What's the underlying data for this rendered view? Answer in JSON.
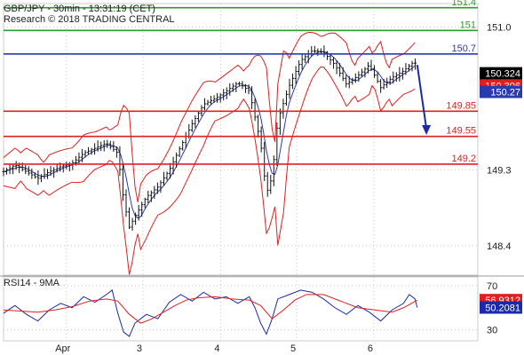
{
  "header": {
    "line1": "GBP/JPY - 30min - 13:31:19 (CET)",
    "line2": "Research © 2018 TRADING CENTRAL"
  },
  "chart_data": [
    {
      "type": "candlestick",
      "title": "GBP/JPY - 30min - 13:31:19 (CET)",
      "ylim": [
        148.05,
        151.28
      ],
      "y_ticks": [
        151.0,
        149.3,
        148.4
      ],
      "y_tick_labels": [
        "151.0",
        "149.3",
        "148.4"
      ],
      "x_tick_labels": [
        "Apr",
        "3",
        "4",
        "5",
        "6"
      ],
      "grid": true,
      "levels": [
        {
          "name": "151.4",
          "value": 151.23,
          "label": "151.4",
          "color": "#2e9a2e"
        },
        {
          "name": "151",
          "value": 150.96,
          "label": "151",
          "color": "#2e9a2e"
        },
        {
          "name": "150.7",
          "value": 150.68,
          "label": "150.7",
          "color": "#2a3bb0"
        },
        {
          "name": "149.85",
          "value": 150.0,
          "label": "149.85",
          "color": "#e02020"
        },
        {
          "name": "149.55",
          "value": 149.7,
          "label": "149.55",
          "color": "#e02020"
        },
        {
          "name": "149.2",
          "value": 149.37,
          "label": "149.2",
          "color": "#e02020"
        }
      ],
      "value_boxes": [
        {
          "value": 150.45,
          "label": "150.324",
          "color": "#000000"
        },
        {
          "value": 150.306,
          "label": "150.306",
          "color": "#e02020"
        },
        {
          "value": 150.23,
          "label": "150.27",
          "color": "#2a3bb0"
        }
      ],
      "projection": {
        "from": [
          72.4,
          150.55
        ],
        "to": [
          74.0,
          149.75
        ],
        "color": "#1a2aa8"
      },
      "price_path": [
        [
          0,
          149.28
        ],
        [
          2,
          149.36
        ],
        [
          4,
          149.28
        ],
        [
          6,
          149.2
        ],
        [
          8,
          149.28
        ],
        [
          10,
          149.34
        ],
        [
          12,
          149.38
        ],
        [
          14,
          149.5
        ],
        [
          16,
          149.56
        ],
        [
          18,
          149.62
        ],
        [
          20,
          149.5
        ],
        [
          21,
          148.95
        ],
        [
          22,
          148.62
        ],
        [
          23,
          148.75
        ],
        [
          25,
          148.98
        ],
        [
          27,
          149.1
        ],
        [
          29,
          149.3
        ],
        [
          31,
          149.58
        ],
        [
          33,
          149.85
        ],
        [
          35,
          150.08
        ],
        [
          37,
          150.15
        ],
        [
          39,
          150.24
        ],
        [
          41,
          150.34
        ],
        [
          43,
          150.24
        ],
        [
          45,
          149.62
        ],
        [
          46,
          149.02
        ],
        [
          47,
          149.22
        ],
        [
          48,
          149.9
        ],
        [
          50,
          150.3
        ],
        [
          52,
          150.6
        ],
        [
          54,
          150.72
        ],
        [
          56,
          150.7
        ],
        [
          58,
          150.55
        ],
        [
          60,
          150.32
        ],
        [
          62,
          150.42
        ],
        [
          64,
          150.55
        ],
        [
          66,
          150.28
        ],
        [
          68,
          150.4
        ],
        [
          70,
          150.48
        ],
        [
          72,
          150.6
        ],
        [
          72.4,
          150.38
        ]
      ],
      "band_width": 0.28,
      "day_boundaries": [
        11,
        24.4,
        38,
        51.3,
        64.8
      ]
    },
    {
      "type": "line",
      "title": "RSI14 - 9MA",
      "ylim": [
        20,
        78
      ],
      "y_ticks": [
        70,
        30
      ],
      "y_tick_labels": [
        "70",
        "30"
      ],
      "series": [
        {
          "name": "RSI14",
          "color": "#1a2aa8",
          "points": [
            [
              0,
              45
            ],
            [
              2,
              52
            ],
            [
              4,
              44
            ],
            [
              6,
              38
            ],
            [
              8,
              48
            ],
            [
              10,
              54
            ],
            [
              12,
              50
            ],
            [
              14,
              60
            ],
            [
              16,
              55
            ],
            [
              18,
              62
            ],
            [
              19,
              66
            ],
            [
              20,
              45
            ],
            [
              21,
              28
            ],
            [
              22,
              24
            ],
            [
              23,
              36
            ],
            [
              25,
              44
            ],
            [
              27,
              40
            ],
            [
              29,
              55
            ],
            [
              31,
              62
            ],
            [
              33,
              56
            ],
            [
              35,
              64
            ],
            [
              37,
              58
            ],
            [
              39,
              60
            ],
            [
              41,
              54
            ],
            [
              43,
              60
            ],
            [
              44,
              50
            ],
            [
              45,
              36
            ],
            [
              46,
              26
            ],
            [
              47,
              40
            ],
            [
              48,
              58
            ],
            [
              50,
              62
            ],
            [
              52,
              66
            ],
            [
              54,
              64
            ],
            [
              56,
              58
            ],
            [
              58,
              50
            ],
            [
              60,
              44
            ],
            [
              62,
              52
            ],
            [
              64,
              46
            ],
            [
              66,
              38
            ],
            [
              68,
              48
            ],
            [
              70,
              54
            ],
            [
              71,
              62
            ],
            [
              72,
              58
            ],
            [
              72.4,
              50.2
            ]
          ]
        },
        {
          "name": "9MA",
          "color": "#e02020",
          "points": [
            [
              0,
              48
            ],
            [
              3,
              47
            ],
            [
              6,
              46
            ],
            [
              9,
              48
            ],
            [
              12,
              51
            ],
            [
              15,
              56
            ],
            [
              18,
              58
            ],
            [
              20,
              56
            ],
            [
              22,
              44
            ],
            [
              24,
              36
            ],
            [
              26,
              40
            ],
            [
              28,
              46
            ],
            [
              30,
              52
            ],
            [
              32,
              57
            ],
            [
              34,
              59
            ],
            [
              37,
              60
            ],
            [
              40,
              58
            ],
            [
              43,
              57
            ],
            [
              45,
              52
            ],
            [
              47,
              40
            ],
            [
              49,
              48
            ],
            [
              51,
              57
            ],
            [
              53,
              62
            ],
            [
              56,
              62
            ],
            [
              59,
              56
            ],
            [
              62,
              50
            ],
            [
              65,
              48
            ],
            [
              68,
              46
            ],
            [
              70,
              50
            ],
            [
              72.4,
              56.9
            ]
          ]
        }
      ],
      "value_boxes": [
        {
          "value": 56.9312,
          "label": "56.9312",
          "color": "#e02020"
        },
        {
          "value": 50.2081,
          "label": "50.2081",
          "color": "#1a2aa8"
        }
      ]
    }
  ]
}
